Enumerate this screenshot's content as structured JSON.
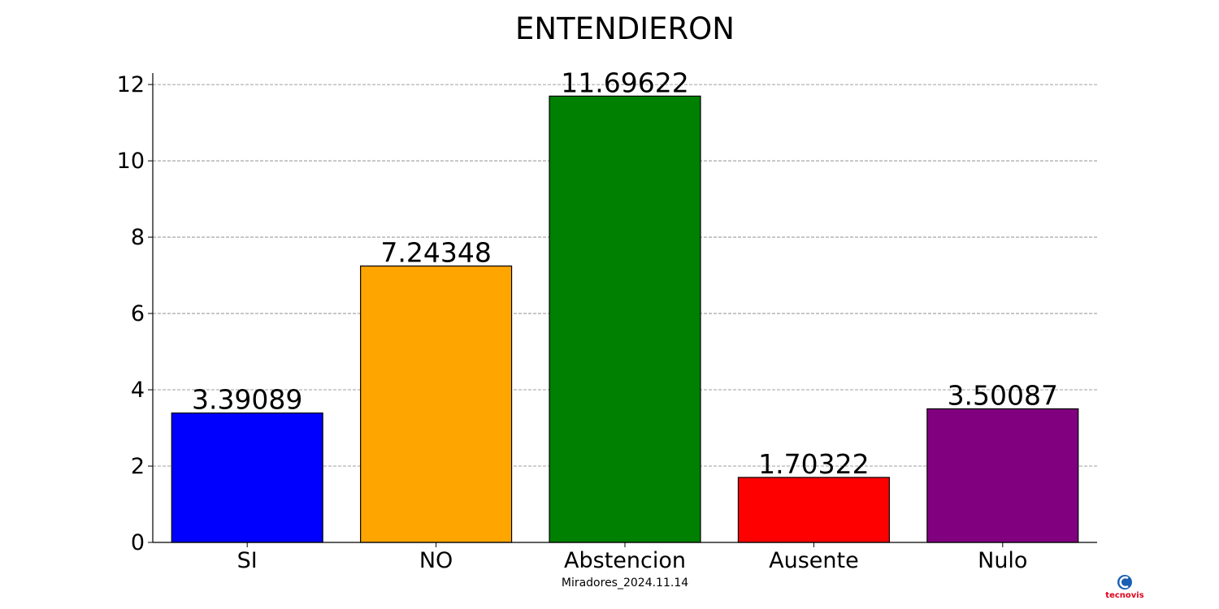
{
  "chart_data": {
    "type": "bar",
    "title": "ENTENDIERON",
    "categories": [
      "SI",
      "NO",
      "Abstencion",
      "Ausente",
      "Nulo"
    ],
    "values": [
      3.39089,
      7.24348,
      11.69622,
      1.70322,
      3.50087
    ],
    "value_labels": [
      "3.39089",
      "7.24348",
      "11.69622",
      "1.70322",
      "3.50087"
    ],
    "colors": [
      "#0000ff",
      "#ffa500",
      "#008000",
      "#ff0000",
      "#800080"
    ],
    "xlabel": "Miradores_2024.11.14",
    "ylabel": "",
    "ylim": [
      0,
      12.3
    ],
    "yticks": [
      0,
      2,
      4,
      6,
      8,
      10,
      12
    ],
    "grid": "horizontal-dashed",
    "legend": "none"
  },
  "logo": {
    "text": "tecnovis",
    "icon": "tecnovis-logo-icon"
  }
}
